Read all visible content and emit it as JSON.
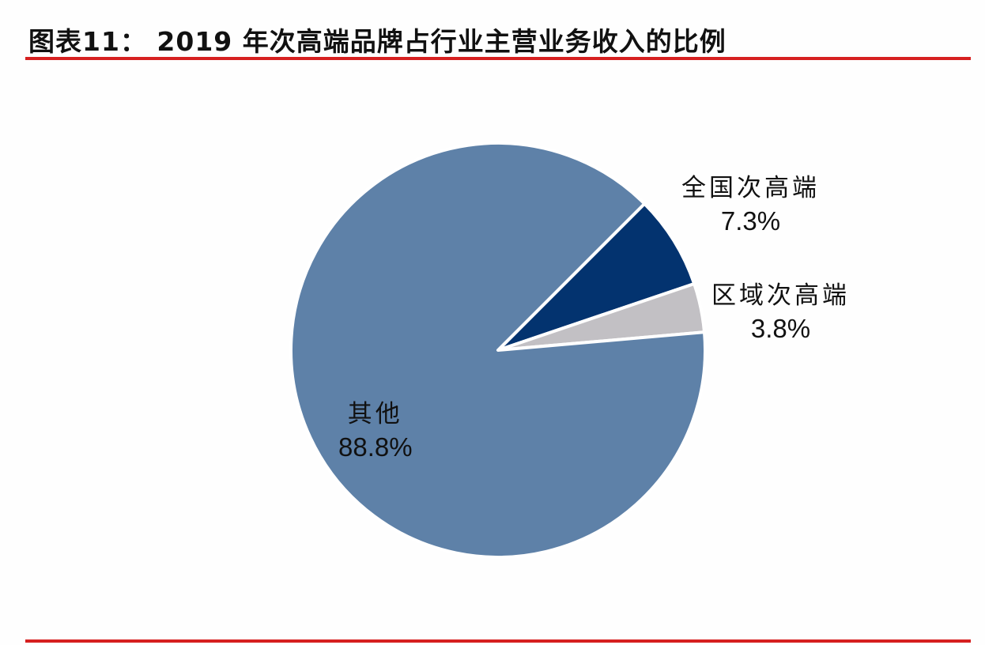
{
  "header": {
    "title": "图表11：  2019 年次高端品牌占行业主营业务收入的比例"
  },
  "colors": {
    "rule": "#d62020",
    "others": "#5e81a8",
    "national": "#03336f",
    "regional": "#c2c0c4",
    "slice_border": "#ffffff"
  },
  "labels": {
    "national": {
      "name": "全国次高端",
      "pct": "7.3%"
    },
    "regional": {
      "name": "区域次高端",
      "pct": "3.8%"
    },
    "others": {
      "name": "其他",
      "pct": "88.8%"
    }
  },
  "chart_data": {
    "type": "pie",
    "title": "2019 年次高端品牌占行业主营业务收入的比例",
    "figure_label": "图表11",
    "categories": [
      "全国次高端",
      "区域次高端",
      "其他"
    ],
    "values": [
      7.3,
      3.8,
      88.8
    ],
    "unit": "%",
    "colors": [
      "#03336f",
      "#c2c0c4",
      "#5e81a8"
    ],
    "legend": "none (data labels on/next to slices)",
    "start_angle_deg_clockwise_from_top": 45
  }
}
